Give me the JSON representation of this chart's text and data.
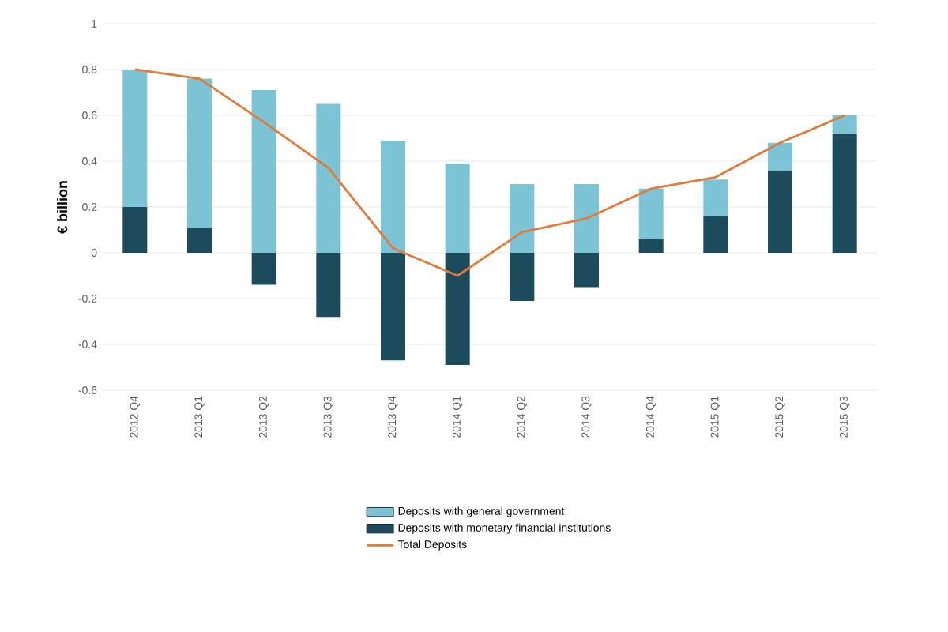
{
  "chart_data": {
    "type": "bar",
    "stacked": true,
    "ylabel": "€ billion",
    "categories": [
      "2012 Q4",
      "2013 Q1",
      "2013 Q2",
      "2013 Q3",
      "2013 Q4",
      "2014 Q1",
      "2014 Q2",
      "2014 Q3",
      "2014 Q4",
      "2015 Q1",
      "2015 Q2",
      "2015 Q3"
    ],
    "series": [
      {
        "name": "Deposits with monetary financial institutions",
        "color": "#1c4b5b",
        "values": [
          0.2,
          0.11,
          -0.14,
          -0.28,
          -0.47,
          -0.49,
          -0.21,
          -0.15,
          0.06,
          0.16,
          0.36,
          0.52
        ]
      },
      {
        "name": "Deposits with general government",
        "color": "#7cc3d6",
        "values": [
          0.6,
          0.65,
          0.71,
          0.65,
          0.49,
          0.39,
          0.3,
          0.3,
          0.22,
          0.16,
          0.12,
          0.08
        ]
      },
      {
        "name": "Total Deposits",
        "type": "line",
        "color": "#e07b39",
        "values": [
          0.8,
          0.76,
          0.57,
          0.37,
          0.02,
          -0.1,
          0.09,
          0.15,
          0.28,
          0.33,
          0.48,
          0.6
        ]
      }
    ],
    "ylim": [
      -0.6,
      1
    ],
    "yticks": [
      -0.6,
      -0.4,
      -0.2,
      0,
      0.2,
      0.4,
      0.6,
      0.8,
      1
    ],
    "grid": "y",
    "legend": "bottom"
  }
}
